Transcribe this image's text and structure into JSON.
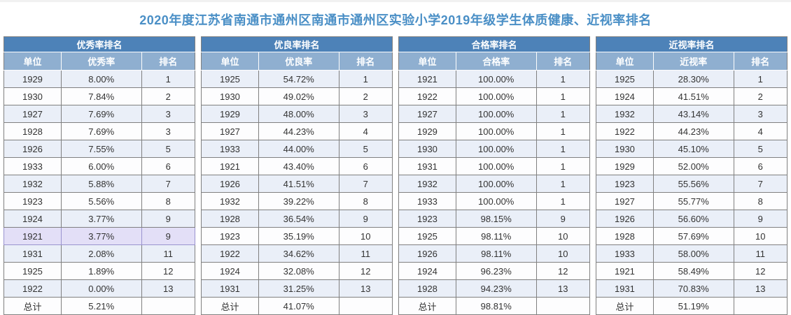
{
  "page": {
    "title": "2020年度江苏省南通市通州区南通市通州区实验小学2019年级学生体质健康、近视率排名"
  },
  "labels": {
    "unit": "单位",
    "rank": "排名",
    "total": "总计"
  },
  "colors": {
    "title_text": "#4a8fc6",
    "table_header_bg": "#4d82b8",
    "column_header_bg": "#8fafd0",
    "header_text": "#ffffff",
    "row_alt_bg": "#eaeff8",
    "row_bg": "#fdfdfe",
    "highlight_row_bg": "#e3dff7",
    "border": "#808080",
    "cell_text": "#333333",
    "top_strip": "#f1f1f1"
  },
  "tables": [
    {
      "title": "优秀率排名",
      "rate_label": "优秀率",
      "highlight_unit": "1921",
      "rows": [
        {
          "unit": "1929",
          "rate": "8.00%",
          "rank": "1"
        },
        {
          "unit": "1930",
          "rate": "7.84%",
          "rank": "2"
        },
        {
          "unit": "1927",
          "rate": "7.69%",
          "rank": "3"
        },
        {
          "unit": "1928",
          "rate": "7.69%",
          "rank": "3"
        },
        {
          "unit": "1926",
          "rate": "7.55%",
          "rank": "5"
        },
        {
          "unit": "1933",
          "rate": "6.00%",
          "rank": "6"
        },
        {
          "unit": "1932",
          "rate": "5.88%",
          "rank": "7"
        },
        {
          "unit": "1923",
          "rate": "5.56%",
          "rank": "8"
        },
        {
          "unit": "1924",
          "rate": "3.77%",
          "rank": "9"
        },
        {
          "unit": "1921",
          "rate": "3.77%",
          "rank": "9"
        },
        {
          "unit": "1931",
          "rate": "2.08%",
          "rank": "11"
        },
        {
          "unit": "1925",
          "rate": "1.89%",
          "rank": "12"
        },
        {
          "unit": "1922",
          "rate": "0.00%",
          "rank": "13"
        }
      ],
      "total": "5.21%"
    },
    {
      "title": "优良率排名",
      "rate_label": "优良率",
      "rows": [
        {
          "unit": "1925",
          "rate": "54.72%",
          "rank": "1"
        },
        {
          "unit": "1930",
          "rate": "49.02%",
          "rank": "2"
        },
        {
          "unit": "1929",
          "rate": "48.00%",
          "rank": "3"
        },
        {
          "unit": "1927",
          "rate": "44.23%",
          "rank": "4"
        },
        {
          "unit": "1933",
          "rate": "44.00%",
          "rank": "5"
        },
        {
          "unit": "1921",
          "rate": "43.40%",
          "rank": "6"
        },
        {
          "unit": "1926",
          "rate": "41.51%",
          "rank": "7"
        },
        {
          "unit": "1932",
          "rate": "39.22%",
          "rank": "8"
        },
        {
          "unit": "1928",
          "rate": "36.54%",
          "rank": "9"
        },
        {
          "unit": "1923",
          "rate": "35.19%",
          "rank": "10"
        },
        {
          "unit": "1922",
          "rate": "34.62%",
          "rank": "11"
        },
        {
          "unit": "1924",
          "rate": "32.08%",
          "rank": "12"
        },
        {
          "unit": "1931",
          "rate": "31.25%",
          "rank": "13"
        }
      ],
      "total": "41.07%"
    },
    {
      "title": "合格率排名",
      "rate_label": "合格率",
      "rows": [
        {
          "unit": "1921",
          "rate": "100.00%",
          "rank": "1"
        },
        {
          "unit": "1922",
          "rate": "100.00%",
          "rank": "1"
        },
        {
          "unit": "1927",
          "rate": "100.00%",
          "rank": "1"
        },
        {
          "unit": "1929",
          "rate": "100.00%",
          "rank": "1"
        },
        {
          "unit": "1930",
          "rate": "100.00%",
          "rank": "1"
        },
        {
          "unit": "1931",
          "rate": "100.00%",
          "rank": "1"
        },
        {
          "unit": "1932",
          "rate": "100.00%",
          "rank": "1"
        },
        {
          "unit": "1933",
          "rate": "100.00%",
          "rank": "1"
        },
        {
          "unit": "1923",
          "rate": "98.15%",
          "rank": "9"
        },
        {
          "unit": "1925",
          "rate": "98.11%",
          "rank": "10"
        },
        {
          "unit": "1926",
          "rate": "98.11%",
          "rank": "10"
        },
        {
          "unit": "1924",
          "rate": "96.23%",
          "rank": "12"
        },
        {
          "unit": "1928",
          "rate": "94.23%",
          "rank": "13"
        }
      ],
      "total": "98.81%"
    },
    {
      "title": "近视率排名",
      "rate_label": "近视率",
      "rows": [
        {
          "unit": "1925",
          "rate": "28.30%",
          "rank": "1"
        },
        {
          "unit": "1924",
          "rate": "41.51%",
          "rank": "2"
        },
        {
          "unit": "1932",
          "rate": "43.14%",
          "rank": "3"
        },
        {
          "unit": "1922",
          "rate": "44.23%",
          "rank": "4"
        },
        {
          "unit": "1930",
          "rate": "45.10%",
          "rank": "5"
        },
        {
          "unit": "1929",
          "rate": "52.00%",
          "rank": "6"
        },
        {
          "unit": "1923",
          "rate": "55.56%",
          "rank": "7"
        },
        {
          "unit": "1927",
          "rate": "55.77%",
          "rank": "8"
        },
        {
          "unit": "1926",
          "rate": "56.60%",
          "rank": "9"
        },
        {
          "unit": "1928",
          "rate": "57.69%",
          "rank": "10"
        },
        {
          "unit": "1933",
          "rate": "58.00%",
          "rank": "11"
        },
        {
          "unit": "1921",
          "rate": "58.49%",
          "rank": "12"
        },
        {
          "unit": "1931",
          "rate": "70.83%",
          "rank": "13"
        }
      ],
      "total": "51.19%"
    }
  ]
}
